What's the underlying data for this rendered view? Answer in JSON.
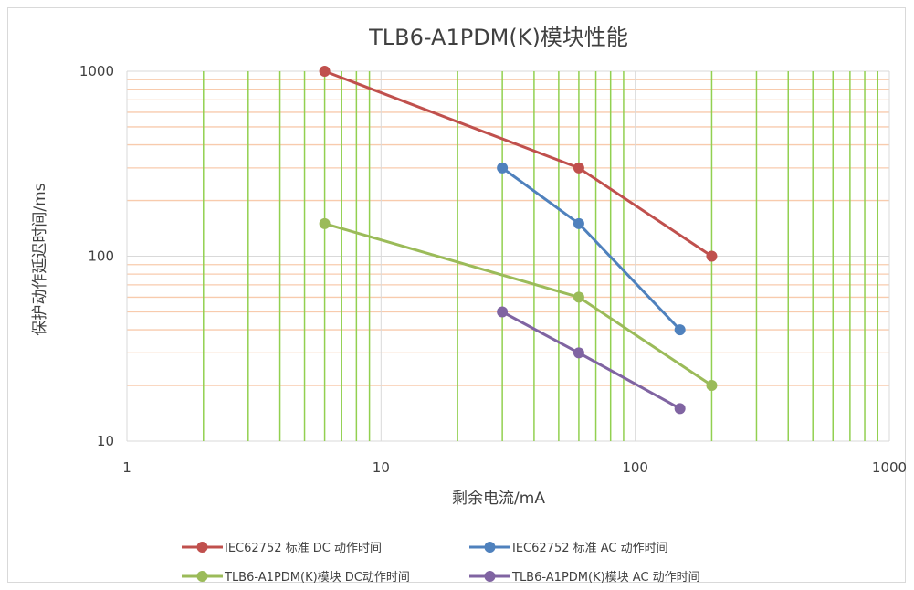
{
  "chart_data": {
    "type": "line",
    "title": "TLB6-A1PDM(K)模块性能",
    "xlabel": "剩余电流/mA",
    "ylabel": "保护动作延迟时间/ms",
    "x_scale": "log",
    "y_scale": "log",
    "xlim": [
      1,
      1000
    ],
    "ylim": [
      10,
      1000
    ],
    "x_ticks": [
      "1",
      "10",
      "100",
      "1000"
    ],
    "y_ticks": [
      "10",
      "100",
      "1000"
    ],
    "grid": {
      "x_major": true,
      "x_minor": true,
      "y_major": true,
      "y_minor": true
    },
    "colors": {
      "x_minor_grid": "#92d050",
      "y_minor_grid": "#f8cbad",
      "major_grid": "#d9d9d9"
    },
    "legend_position": "bottom",
    "series": [
      {
        "name": "IEC62752 标准 DC 动作时间",
        "color": "#c0504d",
        "points": [
          {
            "x": 6,
            "y": 1000
          },
          {
            "x": 60,
            "y": 300
          },
          {
            "x": 200,
            "y": 100
          }
        ]
      },
      {
        "name": "IEC62752 标准 AC 动作时间",
        "color": "#4f81bd",
        "points": [
          {
            "x": 30,
            "y": 300
          },
          {
            "x": 60,
            "y": 150
          },
          {
            "x": 150,
            "y": 40
          }
        ]
      },
      {
        "name": "TLB6-A1PDM(K)模块 DC动作时间",
        "color": "#9bbb59",
        "points": [
          {
            "x": 6,
            "y": 150
          },
          {
            "x": 60,
            "y": 60
          },
          {
            "x": 200,
            "y": 20
          }
        ]
      },
      {
        "name": "TLB6-A1PDM(K)模块 AC 动作时间",
        "color": "#8064a2",
        "points": [
          {
            "x": 30,
            "y": 50
          },
          {
            "x": 60,
            "y": 30
          },
          {
            "x": 150,
            "y": 15
          }
        ]
      }
    ]
  }
}
